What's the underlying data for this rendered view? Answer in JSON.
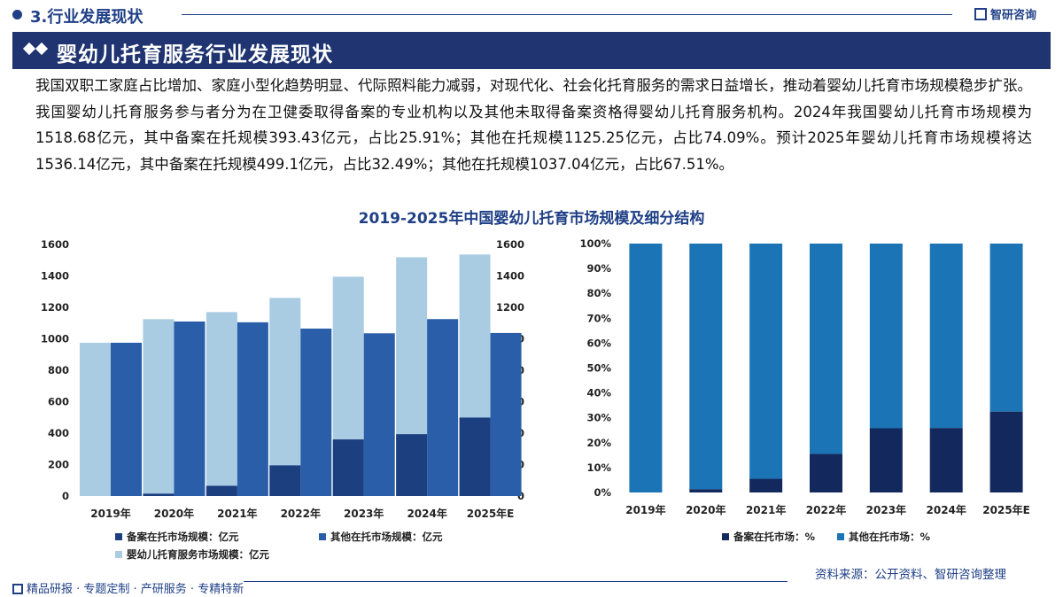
{
  "header": {
    "section_title": "3.行业发展现状",
    "brand": "智研咨询"
  },
  "banner": {
    "title": "婴幼儿托育服务行业发展现状"
  },
  "paragraph": "我国双职工家庭占比增加、家庭小型化趋势明显、代际照料能力减弱，对现代化、社会化托育服务的需求日益增长，推动着婴幼儿托育市场规模稳步扩张。我国婴幼儿托育服务参与者分为在卫健委取得备案的专业机构以及其他未取得备案资格得婴幼儿托育服务机构。2024年我国婴幼儿托育市场规模为1518.68亿元，其中备案在托规模393.43亿元，占比25.91%；其他在托规模1125.25亿元，占比74.09%。预计2025年婴幼儿托育市场规模将达1536.14亿元，其中备案在托规模499.1亿元，占比32.49%；其他在托规模1037.04亿元，占比67.51%。",
  "chart_title": "2019-2025年中国婴幼儿托育市场规模及细分结构",
  "colors": {
    "total": "#a9cce3",
    "filed": "#1c3f80",
    "other": "#2a5ea8",
    "pct_filed": "#13295e",
    "pct_other": "#1b74b5",
    "brand": "#1f3f86"
  },
  "chart_data": [
    {
      "type": "bar",
      "categories": [
        "2019年",
        "2020年",
        "2021年",
        "2022年",
        "2023年",
        "2024年",
        "2025年E"
      ],
      "series": [
        {
          "name": "备案在托市场规模：亿元",
          "values": [
            0,
            15,
            65,
            195,
            360,
            393.43,
            499.1
          ]
        },
        {
          "name": "其他在托市场规模：亿元",
          "values": [
            975,
            1110,
            1105,
            1065,
            1035,
            1125.25,
            1037.04
          ]
        },
        {
          "name": "婴幼儿托育服务市场规模：亿元",
          "values": [
            975,
            1125,
            1170,
            1260,
            1395,
            1518.68,
            1536.14
          ]
        }
      ],
      "ylim": [
        0,
        1600
      ],
      "yticks": [
        "0",
        "200",
        "400",
        "600",
        "800",
        "1000",
        "1200",
        "1400",
        "1600"
      ]
    },
    {
      "type": "bar",
      "stacked": true,
      "categories": [
        "2019年",
        "2020年",
        "2021年",
        "2022年",
        "2023年",
        "2024年",
        "2025年E"
      ],
      "series": [
        {
          "name": "备案在托市场：%",
          "values": [
            0,
            1.3,
            5.5,
            15.5,
            25.8,
            25.91,
            32.49
          ]
        },
        {
          "name": "其他在托市场：%",
          "values": [
            100,
            98.7,
            94.5,
            84.5,
            74.2,
            74.09,
            67.51
          ]
        }
      ],
      "ylim": [
        0,
        100
      ],
      "yticks": [
        "0%",
        "10%",
        "20%",
        "30%",
        "40%",
        "50%",
        "60%",
        "70%",
        "80%",
        "90%",
        "100%"
      ]
    }
  ],
  "source": "资料来源：公开资料、智研咨询整理",
  "footer": "精品研报 · 专题定制 · 产研服务 · 专精特新"
}
